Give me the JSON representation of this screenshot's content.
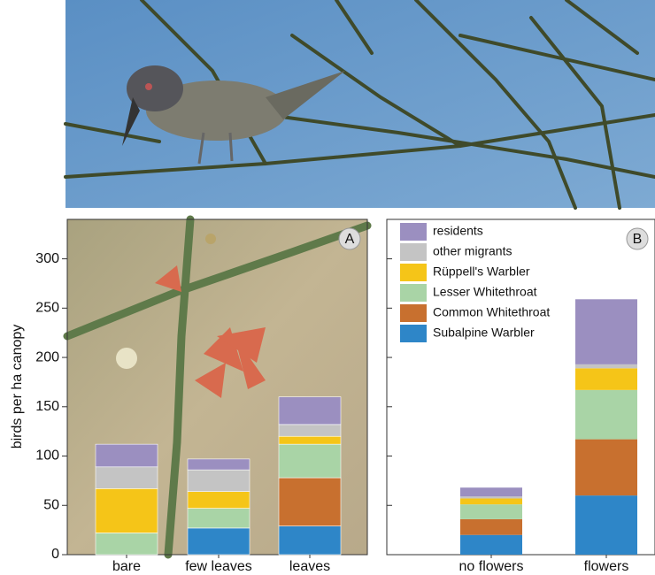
{
  "chart_data": [
    {
      "type": "bar",
      "stacked": true,
      "panel_label": "A",
      "ylabel": "birds per ha canopy",
      "categories": [
        "bare",
        "few leaves",
        "leaves"
      ],
      "ylim": [
        0,
        340
      ],
      "yticks": [
        0,
        50,
        100,
        150,
        200,
        250,
        300
      ],
      "series": [
        {
          "color": "#2e86c8",
          "values": [
            0,
            27,
            29
          ]
        },
        {
          "color": "#c8702f",
          "values": [
            0,
            0,
            49
          ]
        },
        {
          "color": "#a9d4a6",
          "values": [
            22,
            20,
            34
          ]
        },
        {
          "color": "#f5c518",
          "values": [
            45,
            17,
            8
          ]
        },
        {
          "color": "#c4c4c4",
          "values": [
            22,
            22,
            12
          ]
        },
        {
          "color": "#9b8fc0",
          "values": [
            23,
            11,
            28
          ]
        }
      ]
    },
    {
      "type": "bar",
      "stacked": true,
      "panel_label": "B",
      "legend": "upper-left",
      "categories": [
        "no flowers",
        "flowers"
      ],
      "ylim": [
        0,
        340
      ],
      "yticks": [
        0,
        50,
        100,
        150,
        200,
        250,
        300
      ],
      "series": [
        {
          "name": "Subalpine Warbler",
          "color": "#2e86c8",
          "values": [
            20,
            60
          ]
        },
        {
          "name": "Common Whitethroat",
          "color": "#c8702f",
          "values": [
            16,
            57
          ]
        },
        {
          "name": "Lesser Whitethroat",
          "color": "#a9d4a6",
          "values": [
            15,
            50
          ]
        },
        {
          "name": "Rüppell's Warbler",
          "color": "#f5c518",
          "values": [
            6,
            22
          ]
        },
        {
          "name": "other migrants",
          "color": "#c4c4c4",
          "values": [
            2,
            4
          ]
        },
        {
          "name": "residents",
          "color": "#9b8fc0",
          "values": [
            9,
            66
          ]
        }
      ]
    }
  ]
}
